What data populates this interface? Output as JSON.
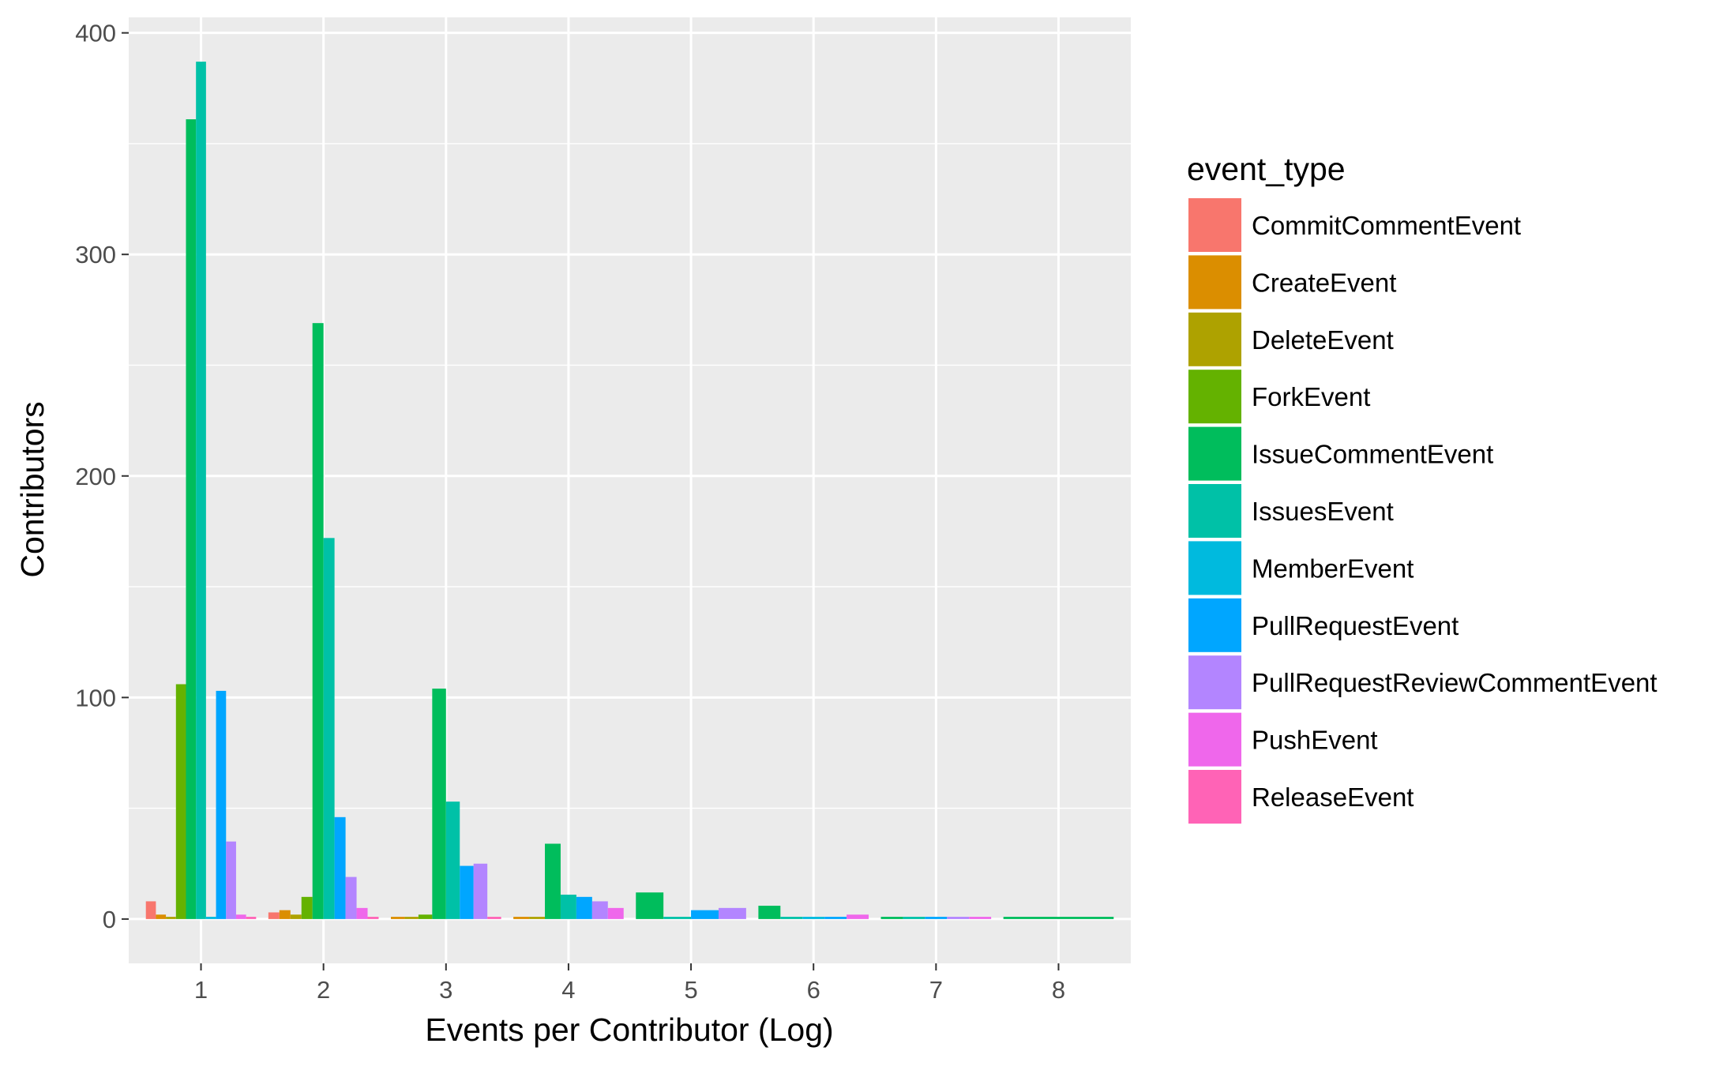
{
  "chart_data": {
    "type": "bar",
    "title": "",
    "xlabel": "Events per Contributor (Log)",
    "ylabel": "Contributors",
    "x_ticks": [
      "1",
      "2",
      "3",
      "4",
      "5",
      "6",
      "7",
      "8"
    ],
    "y_ticks": [
      "0",
      "100",
      "200",
      "300",
      "400"
    ],
    "ylim": [
      -20,
      407
    ],
    "xlim": [
      0.41,
      8.59
    ],
    "grid": true,
    "legend_title": "event_type",
    "legend_position": "right",
    "series": [
      {
        "name": "CommitCommentEvent",
        "color": "#F8766D",
        "points": [
          {
            "x": 1,
            "y": 8
          },
          {
            "x": 2,
            "y": 3
          }
        ]
      },
      {
        "name": "CreateEvent",
        "color": "#DB8E00",
        "points": [
          {
            "x": 1,
            "y": 2
          },
          {
            "x": 2,
            "y": 4
          },
          {
            "x": 3,
            "y": 1
          },
          {
            "x": 4,
            "y": 1
          }
        ]
      },
      {
        "name": "DeleteEvent",
        "color": "#AEA200",
        "points": [
          {
            "x": 1,
            "y": 1
          },
          {
            "x": 2,
            "y": 2
          },
          {
            "x": 3,
            "y": 1
          },
          {
            "x": 4,
            "y": 1
          }
        ]
      },
      {
        "name": "ForkEvent",
        "color": "#64B200",
        "points": [
          {
            "x": 1,
            "y": 106
          },
          {
            "x": 2,
            "y": 10
          },
          {
            "x": 3,
            "y": 2
          }
        ]
      },
      {
        "name": "IssueCommentEvent",
        "color": "#00BD5C",
        "points": [
          {
            "x": 1,
            "y": 361
          },
          {
            "x": 2,
            "y": 269
          },
          {
            "x": 3,
            "y": 104
          },
          {
            "x": 4,
            "y": 34
          },
          {
            "x": 5,
            "y": 12
          },
          {
            "x": 6,
            "y": 6
          },
          {
            "x": 7,
            "y": 1
          },
          {
            "x": 8,
            "y": 1
          }
        ]
      },
      {
        "name": "IssuesEvent",
        "color": "#00C1A7",
        "points": [
          {
            "x": 1,
            "y": 387
          },
          {
            "x": 2,
            "y": 172
          },
          {
            "x": 3,
            "y": 53
          },
          {
            "x": 4,
            "y": 11
          },
          {
            "x": 5,
            "y": 1
          },
          {
            "x": 6,
            "y": 1
          },
          {
            "x": 7,
            "y": 1
          }
        ]
      },
      {
        "name": "MemberEvent",
        "color": "#00BADE",
        "points": [
          {
            "x": 1,
            "y": 1
          },
          {
            "x": 6,
            "y": 1
          }
        ]
      },
      {
        "name": "PullRequestEvent",
        "color": "#00A6FF",
        "points": [
          {
            "x": 1,
            "y": 103
          },
          {
            "x": 2,
            "y": 46
          },
          {
            "x": 3,
            "y": 24
          },
          {
            "x": 4,
            "y": 10
          },
          {
            "x": 5,
            "y": 4
          },
          {
            "x": 6,
            "y": 1
          },
          {
            "x": 7,
            "y": 1
          }
        ]
      },
      {
        "name": "PullRequestReviewCommentEvent",
        "color": "#B385FF",
        "points": [
          {
            "x": 1,
            "y": 35
          },
          {
            "x": 2,
            "y": 19
          },
          {
            "x": 3,
            "y": 25
          },
          {
            "x": 4,
            "y": 8
          },
          {
            "x": 5,
            "y": 5
          },
          {
            "x": 7,
            "y": 1
          }
        ]
      },
      {
        "name": "PushEvent",
        "color": "#EF67EB",
        "points": [
          {
            "x": 1,
            "y": 2
          },
          {
            "x": 2,
            "y": 5
          },
          {
            "x": 4,
            "y": 5
          },
          {
            "x": 6,
            "y": 2
          },
          {
            "x": 7,
            "y": 1
          }
        ]
      },
      {
        "name": "ReleaseEvent",
        "color": "#FF63B6",
        "points": [
          {
            "x": 1,
            "y": 1
          },
          {
            "x": 2,
            "y": 1
          },
          {
            "x": 3,
            "y": 1
          }
        ]
      }
    ]
  }
}
